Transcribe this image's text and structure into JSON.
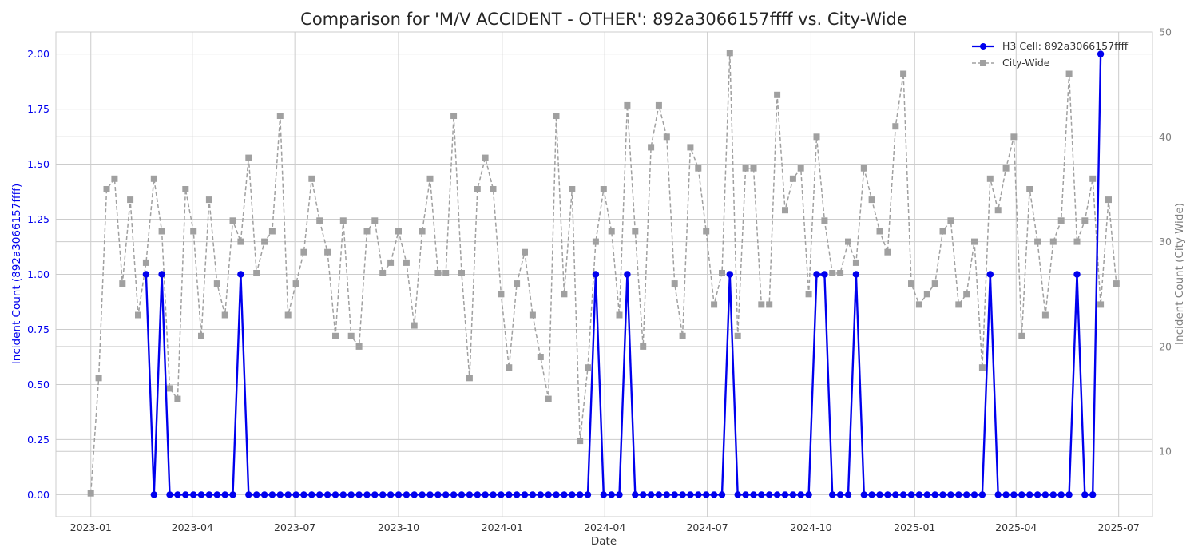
{
  "chart_data": {
    "type": "line",
    "title": "Comparison for 'M/V ACCIDENT - OTHER': 892a3066157ffff vs. City-Wide",
    "xlabel": "Date",
    "ylabel_left": "Incident Count (892a3066157ffff)",
    "ylabel_right": "Incident Count (City-Wide)",
    "x_ticks": [
      "2023-01",
      "2023-04",
      "2023-07",
      "2023-10",
      "2024-01",
      "2024-04",
      "2024-07",
      "2024-10",
      "2025-01",
      "2025-04",
      "2025-07"
    ],
    "xlim": [
      "2022-12-01",
      "2025-07-31"
    ],
    "ylim_left": [
      -0.1,
      2.1
    ],
    "yticks_left": [
      0.0,
      0.25,
      0.5,
      0.75,
      1.0,
      1.25,
      1.5,
      1.75,
      2.0
    ],
    "ylim_right": [
      3.77,
      50
    ],
    "yticks_right": [
      10,
      20,
      30,
      40,
      50
    ],
    "grid": true,
    "legend_position": "top-right",
    "colors": {
      "cell": "#0000ee",
      "city": "#a0a0a0",
      "left_axis": "#0000ee",
      "right_axis": "#808080"
    },
    "series": [
      {
        "name": "H3 Cell: 892a3066157ffff",
        "axis": "left",
        "style": "solid-circle",
        "dates": [
          "2023-02-19",
          "2023-02-26",
          "2023-03-05",
          "2023-03-12",
          "2023-03-19",
          "2023-03-26",
          "2023-04-02",
          "2023-04-09",
          "2023-04-16",
          "2023-04-23",
          "2023-04-30",
          "2023-05-07",
          "2023-05-14",
          "2023-05-21",
          "2023-05-28",
          "2023-06-04",
          "2023-06-11",
          "2023-06-18",
          "2023-06-25",
          "2023-07-02",
          "2023-07-09",
          "2023-07-16",
          "2023-07-23",
          "2023-07-30",
          "2023-08-06",
          "2023-08-13",
          "2023-08-20",
          "2023-08-27",
          "2023-09-03",
          "2023-09-10",
          "2023-09-17",
          "2023-09-24",
          "2023-10-01",
          "2023-10-08",
          "2023-10-15",
          "2023-10-22",
          "2023-10-29",
          "2023-11-05",
          "2023-11-12",
          "2023-11-19",
          "2023-11-26",
          "2023-12-03",
          "2023-12-10",
          "2023-12-17",
          "2023-12-24",
          "2023-12-31",
          "2024-01-07",
          "2024-01-14",
          "2024-01-21",
          "2024-01-28",
          "2024-02-04",
          "2024-02-11",
          "2024-02-18",
          "2024-02-25",
          "2024-03-03",
          "2024-03-10",
          "2024-03-17",
          "2024-03-24",
          "2024-03-31",
          "2024-04-07",
          "2024-04-14",
          "2024-04-21",
          "2024-04-28",
          "2024-05-05",
          "2024-05-12",
          "2024-05-19",
          "2024-05-26",
          "2024-06-02",
          "2024-06-09",
          "2024-06-16",
          "2024-06-23",
          "2024-06-30",
          "2024-07-07",
          "2024-07-14",
          "2024-07-21",
          "2024-07-28",
          "2024-08-04",
          "2024-08-11",
          "2024-08-18",
          "2024-08-25",
          "2024-09-01",
          "2024-09-08",
          "2024-09-15",
          "2024-09-22",
          "2024-09-29",
          "2024-10-06",
          "2024-10-13",
          "2024-10-20",
          "2024-10-27",
          "2024-11-03",
          "2024-11-10",
          "2024-11-17",
          "2024-11-24",
          "2024-12-01",
          "2024-12-08",
          "2024-12-15",
          "2024-12-22",
          "2024-12-29",
          "2025-01-05",
          "2025-01-12",
          "2025-01-19",
          "2025-01-26",
          "2025-02-02",
          "2025-02-09",
          "2025-02-16",
          "2025-02-23",
          "2025-03-02",
          "2025-03-09",
          "2025-03-16",
          "2025-03-23",
          "2025-03-30",
          "2025-04-06",
          "2025-04-13",
          "2025-04-20",
          "2025-04-27",
          "2025-05-04",
          "2025-05-11",
          "2025-05-18",
          "2025-05-25",
          "2025-06-01",
          "2025-06-08",
          "2025-06-15"
        ],
        "values": [
          1,
          0,
          1,
          0,
          0,
          0,
          0,
          0,
          0,
          0,
          0,
          0,
          1,
          0,
          0,
          0,
          0,
          0,
          0,
          0,
          0,
          0,
          0,
          0,
          0,
          0,
          0,
          0,
          0,
          0,
          0,
          0,
          0,
          0,
          0,
          0,
          0,
          0,
          0,
          0,
          0,
          0,
          0,
          0,
          0,
          0,
          0,
          0,
          0,
          0,
          0,
          0,
          0,
          0,
          0,
          0,
          0,
          1,
          0,
          0,
          0,
          1,
          0,
          0,
          0,
          0,
          0,
          0,
          0,
          0,
          0,
          0,
          0,
          0,
          1,
          0,
          0,
          0,
          0,
          0,
          0,
          0,
          0,
          0,
          0,
          1,
          1,
          0,
          0,
          0,
          1,
          0,
          0,
          0,
          0,
          0,
          0,
          0,
          0,
          0,
          0,
          0,
          0,
          0,
          0,
          0,
          0,
          1,
          0,
          0,
          0,
          0,
          0,
          0,
          0,
          0,
          0,
          0,
          1,
          0,
          0,
          2
        ]
      },
      {
        "name": "City-Wide",
        "axis": "right",
        "style": "dashed-square",
        "dates": [
          "2023-01-01",
          "2023-01-08",
          "2023-01-15",
          "2023-01-22",
          "2023-01-29",
          "2023-02-05",
          "2023-02-12",
          "2023-02-19",
          "2023-02-26",
          "2023-03-05",
          "2023-03-12",
          "2023-03-19",
          "2023-03-26",
          "2023-04-02",
          "2023-04-09",
          "2023-04-16",
          "2023-04-23",
          "2023-04-30",
          "2023-05-07",
          "2023-05-14",
          "2023-05-21",
          "2023-05-28",
          "2023-06-04",
          "2023-06-11",
          "2023-06-18",
          "2023-06-25",
          "2023-07-02",
          "2023-07-09",
          "2023-07-16",
          "2023-07-23",
          "2023-07-30",
          "2023-08-06",
          "2023-08-13",
          "2023-08-20",
          "2023-08-27",
          "2023-09-03",
          "2023-09-10",
          "2023-09-17",
          "2023-09-24",
          "2023-10-01",
          "2023-10-08",
          "2023-10-15",
          "2023-10-22",
          "2023-10-29",
          "2023-11-05",
          "2023-11-12",
          "2023-11-19",
          "2023-11-26",
          "2023-12-03",
          "2023-12-10",
          "2023-12-17",
          "2023-12-24",
          "2023-12-31",
          "2024-01-07",
          "2024-01-14",
          "2024-01-21",
          "2024-01-28",
          "2024-02-04",
          "2024-02-11",
          "2024-02-18",
          "2024-02-25",
          "2024-03-03",
          "2024-03-10",
          "2024-03-17",
          "2024-03-24",
          "2024-03-31",
          "2024-04-07",
          "2024-04-14",
          "2024-04-21",
          "2024-04-28",
          "2024-05-05",
          "2024-05-12",
          "2024-05-19",
          "2024-05-26",
          "2024-06-02",
          "2024-06-09",
          "2024-06-16",
          "2024-06-23",
          "2024-06-30",
          "2024-07-07",
          "2024-07-14",
          "2024-07-21",
          "2024-07-28",
          "2024-08-04",
          "2024-08-11",
          "2024-08-18",
          "2024-08-25",
          "2024-09-01",
          "2024-09-08",
          "2024-09-15",
          "2024-09-22",
          "2024-09-29",
          "2024-10-06",
          "2024-10-13",
          "2024-10-20",
          "2024-10-27",
          "2024-11-03",
          "2024-11-10",
          "2024-11-17",
          "2024-11-24",
          "2024-12-01",
          "2024-12-08",
          "2024-12-15",
          "2024-12-22",
          "2024-12-29",
          "2025-01-05",
          "2025-01-12",
          "2025-01-19",
          "2025-01-26",
          "2025-02-02",
          "2025-02-09",
          "2025-02-16",
          "2025-02-23",
          "2025-03-02",
          "2025-03-09",
          "2025-03-16",
          "2025-03-23",
          "2025-03-30",
          "2025-04-06",
          "2025-04-13",
          "2025-04-20",
          "2025-04-27",
          "2025-05-04",
          "2025-05-11",
          "2025-05-18",
          "2025-05-25",
          "2025-06-01",
          "2025-06-08",
          "2025-06-15",
          "2025-06-22",
          "2025-06-29"
        ],
        "values": [
          6,
          17,
          35,
          36,
          26,
          34,
          23,
          28,
          36,
          31,
          16,
          15,
          35,
          31,
          21,
          34,
          26,
          23,
          32,
          30,
          38,
          27,
          30,
          31,
          42,
          23,
          26,
          29,
          36,
          32,
          29,
          21,
          32,
          21,
          20,
          31,
          32,
          27,
          28,
          31,
          28,
          22,
          31,
          36,
          27,
          27,
          42,
          27,
          17,
          35,
          38,
          35,
          25,
          18,
          26,
          29,
          23,
          19,
          15,
          42,
          25,
          35,
          11,
          18,
          30,
          35,
          31,
          23,
          43,
          31,
          20,
          39,
          43,
          40,
          26,
          21,
          39,
          37,
          31,
          24,
          27,
          48,
          21,
          37,
          37,
          24,
          24,
          44,
          33,
          36,
          37,
          25,
          40,
          32,
          27,
          27,
          30,
          28,
          37,
          34,
          31,
          29,
          41,
          46,
          26,
          24,
          25,
          26,
          31,
          32,
          24,
          25,
          30,
          18,
          36,
          33,
          37,
          40,
          21,
          35,
          30,
          23,
          30,
          32,
          46,
          30,
          32,
          36,
          24,
          34,
          26
        ]
      }
    ]
  }
}
